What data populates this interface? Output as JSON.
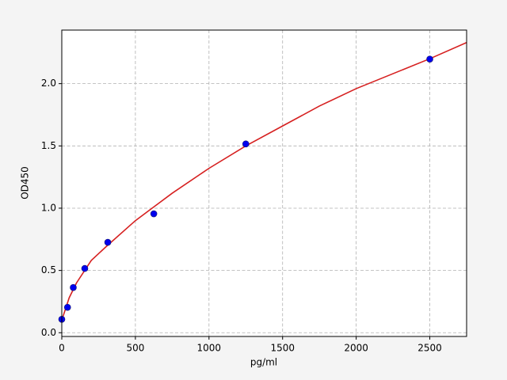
{
  "chart_data": {
    "type": "scatter",
    "x_label": "pg/ml",
    "y_label": "OD450",
    "xlim": [
      0,
      2750
    ],
    "ylim": [
      -0.03,
      2.43
    ],
    "xticks": [
      0,
      500,
      1000,
      1500,
      2000,
      2500
    ],
    "yticks": [
      {
        "value": 0,
        "label": "0.0"
      },
      0.5,
      {
        "value": 1,
        "label": "1.0"
      },
      1.5,
      {
        "value": 2,
        "label": "2.0"
      }
    ],
    "grid": true,
    "series": [
      {
        "type": "line",
        "color": "#d62020",
        "x": [
          0,
          50,
          100,
          200,
          300,
          500,
          625,
          750,
          1000,
          1250,
          1500,
          1750,
          2000,
          2250,
          2500,
          2750
        ],
        "values": [
          0.1,
          0.28,
          0.4,
          0.58,
          0.69,
          0.9,
          1.01,
          1.12,
          1.32,
          1.5,
          1.66,
          1.82,
          1.96,
          2.08,
          2.2,
          2.33
        ]
      },
      {
        "type": "scatter",
        "color": "#0000ee",
        "x": [
          0,
          39,
          78,
          156,
          312.5,
          625,
          1250,
          2500
        ],
        "values": [
          0.108,
          0.204,
          0.363,
          0.516,
          0.726,
          0.955,
          1.516,
          2.197
        ]
      }
    ]
  }
}
